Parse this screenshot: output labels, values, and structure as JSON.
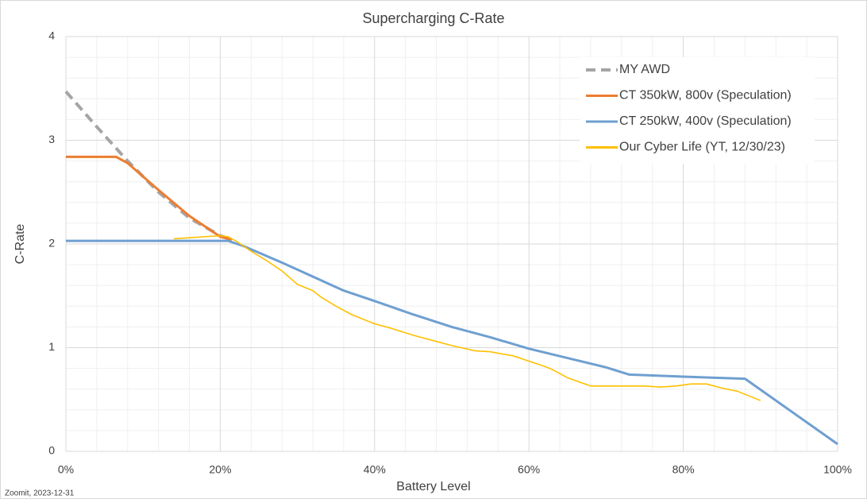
{
  "chart_data": {
    "type": "line",
    "title": "Supercharging C-Rate",
    "x_label": "Battery Level",
    "y_label": "C-Rate",
    "source": "Zoomit, 2023-12-31",
    "xlim": [
      0,
      100
    ],
    "ylim": [
      0,
      4
    ],
    "xticks": [
      {
        "value": 0,
        "label": "0%"
      },
      {
        "value": 20,
        "label": "20%"
      },
      {
        "value": 40,
        "label": "40%"
      },
      {
        "value": 60,
        "label": "60%"
      },
      {
        "value": 80,
        "label": "80%"
      },
      {
        "value": 100,
        "label": "100%"
      }
    ],
    "yticks": [
      0,
      1,
      2,
      3,
      4
    ],
    "grid": true,
    "minor_grid": true,
    "legend": "top-right",
    "series": [
      {
        "name": "MY AWD",
        "color": "#a5a5a5",
        "dashed": true,
        "x": [
          0,
          4,
          8,
          12,
          16,
          20,
          21.5
        ],
        "values": [
          3.47,
          3.13,
          2.8,
          2.5,
          2.25,
          2.08,
          2.04
        ]
      },
      {
        "name": "CT 350kW, 800v (Speculation)",
        "color": "#ed7d31",
        "dashed": false,
        "x": [
          0,
          6.5,
          8,
          12,
          16,
          20,
          21.5
        ],
        "values": [
          2.84,
          2.84,
          2.78,
          2.52,
          2.27,
          2.07,
          2.04
        ]
      },
      {
        "name": "CT 250kW, 400v (Speculation)",
        "color": "#6f9fd0",
        "dashed": false,
        "x": [
          0,
          21,
          23,
          28,
          36,
          40,
          45,
          50,
          55,
          60,
          65,
          70,
          73,
          80,
          88,
          100
        ],
        "values": [
          2.03,
          2.03,
          1.98,
          1.82,
          1.55,
          1.45,
          1.32,
          1.2,
          1.1,
          0.99,
          0.9,
          0.81,
          0.74,
          0.72,
          0.7,
          0.07
        ]
      },
      {
        "name": "Our Cyber Life (YT, 12/30/23)",
        "color": "#ffc000",
        "dashed": false,
        "x": [
          14,
          16,
          18,
          20,
          21,
          22,
          24,
          26,
          28,
          30,
          32,
          33,
          35,
          37,
          40,
          42,
          45,
          48,
          50,
          53,
          55,
          58,
          60,
          62,
          63,
          65,
          68,
          70,
          75,
          77,
          79,
          81,
          83,
          85,
          87,
          90
        ],
        "values": [
          2.05,
          2.06,
          2.07,
          2.08,
          2.07,
          2.03,
          1.93,
          1.84,
          1.74,
          1.61,
          1.55,
          1.49,
          1.4,
          1.32,
          1.23,
          1.19,
          1.12,
          1.06,
          1.02,
          0.97,
          0.96,
          0.92,
          0.87,
          0.82,
          0.79,
          0.71,
          0.63,
          0.63,
          0.63,
          0.62,
          0.63,
          0.65,
          0.65,
          0.61,
          0.58,
          0.49
        ]
      }
    ]
  }
}
